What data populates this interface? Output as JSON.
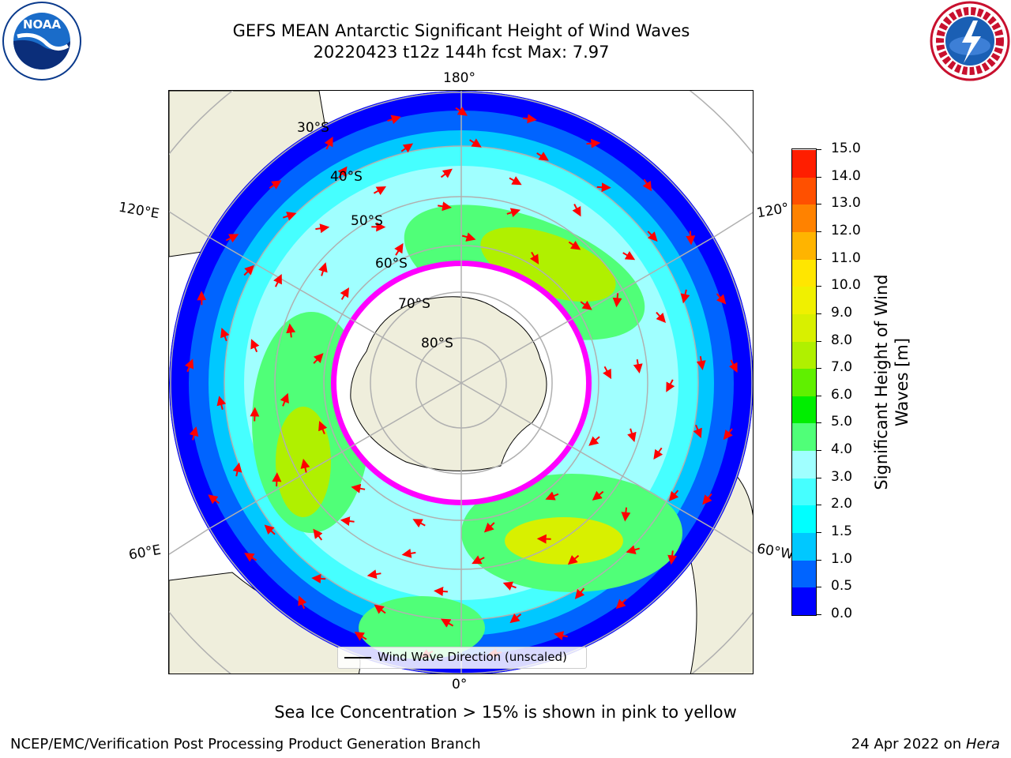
{
  "header": {
    "title_line1": "GEFS MEAN Antarctic Significant Height of Wind Waves",
    "title_line2": "20220423 t12z 144h fcst   Max: 7.97"
  },
  "logos": {
    "noaa": {
      "icon": "noaa-logo",
      "text": "NOAA"
    },
    "nws": {
      "icon": "nws-logo"
    }
  },
  "map": {
    "projection": "south-polar-stereographic",
    "longitude_labels": {
      "top": "180°",
      "bottom": "0°",
      "left_upper": "120°E",
      "left_lower": "60°E",
      "right_upper": "120°",
      "right_lower": "60°W"
    },
    "latitude_labels": [
      "30°S",
      "40°S",
      "50°S",
      "60°S",
      "70°S",
      "80°S"
    ],
    "colors": {
      "land": "#efeedc",
      "coastline": "#000000",
      "gridline": "#b0b0b0",
      "arrows": "#ff0000",
      "sea_ice": [
        "#ff00ff",
        "#ffa0ff",
        "#ffd700"
      ]
    }
  },
  "legend": {
    "label": "Wind Wave Direction (unscaled)"
  },
  "colorbar": {
    "label": "Significant Height of Wind Waves [m]",
    "ticks": [
      "0.0",
      "0.5",
      "1.0",
      "1.5",
      "2.0",
      "3.0",
      "4.0",
      "5.0",
      "6.0",
      "7.0",
      "8.0",
      "9.0",
      "10.0",
      "11.0",
      "12.0",
      "13.0",
      "14.0",
      "15.0"
    ],
    "colors": [
      "#0000ff",
      "#0064ff",
      "#00c8ff",
      "#00ffff",
      "#46ffff",
      "#a0ffff",
      "#50ff78",
      "#00ee00",
      "#60f000",
      "#b0f000",
      "#d8f000",
      "#f0f000",
      "#ffe600",
      "#ffb400",
      "#ff8200",
      "#ff5000",
      "#ff1e00"
    ]
  },
  "caption": "Sea Ice Concentration > 15% is shown in pink to yellow",
  "footer": {
    "left": "NCEP/EMC/Verification Post Processing Product Generation Branch",
    "right_prefix": "24 Apr 2022 on ",
    "right_host": "Hera"
  }
}
